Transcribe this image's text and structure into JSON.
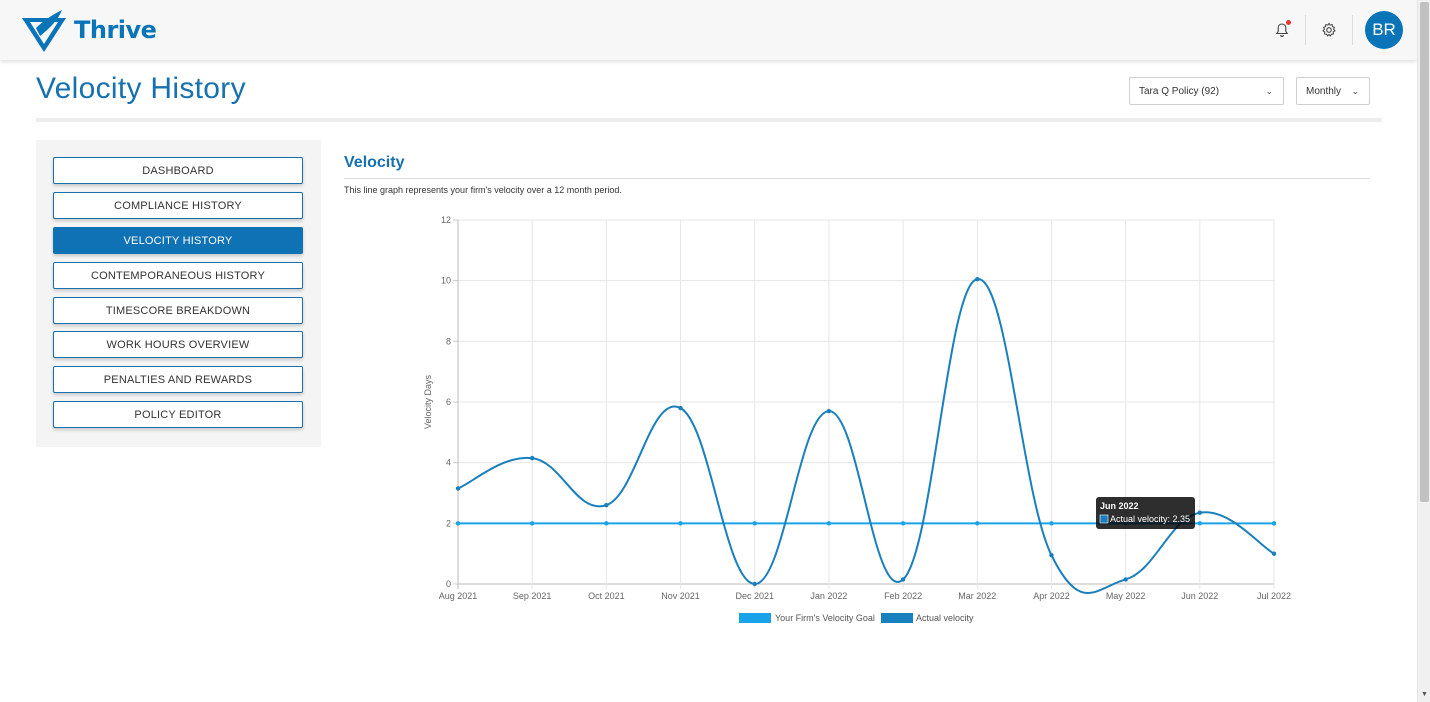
{
  "header": {
    "app_name": "Thrive",
    "avatar_initials": "BR",
    "icons": [
      "bell-icon",
      "gear-icon"
    ]
  },
  "page": {
    "title": "Velocity History",
    "policy_select": "Tara Q Policy (92)",
    "period_select": "Monthly"
  },
  "sidebar": {
    "items": [
      {
        "label": "DASHBOARD",
        "active": false
      },
      {
        "label": "COMPLIANCE HISTORY",
        "active": false
      },
      {
        "label": "VELOCITY HISTORY",
        "active": true
      },
      {
        "label": "CONTEMPORANEOUS HISTORY",
        "active": false
      },
      {
        "label": "TIMESCORE BREAKDOWN",
        "active": false
      },
      {
        "label": "WORK HOURS OVERVIEW",
        "active": false
      },
      {
        "label": "PENALTIES AND REWARDS",
        "active": false
      },
      {
        "label": "POLICY EDITOR",
        "active": false
      }
    ]
  },
  "chart_section": {
    "title": "Velocity",
    "description": "This line graph represents your firm's velocity over a 12 month period."
  },
  "colors": {
    "brand": "#0a74b8",
    "goal_line": "#1aa3e8",
    "actual_line": "#1a7fbd"
  },
  "chart_data": {
    "type": "line",
    "categories": [
      "Aug 2021",
      "Sep 2021",
      "Oct 2021",
      "Nov 2021",
      "Dec 2021",
      "Jan 2022",
      "Feb 2022",
      "Mar 2022",
      "Apr 2022",
      "May 2022",
      "Jun 2022",
      "Jul 2022"
    ],
    "series": [
      {
        "name": "Your Firm's Velocity Goal",
        "values": [
          2,
          2,
          2,
          2,
          2,
          2,
          2,
          2,
          2,
          2,
          2,
          2
        ]
      },
      {
        "name": "Actual velocity",
        "values": [
          3.15,
          4.15,
          2.6,
          5.8,
          0,
          5.7,
          0.15,
          10.05,
          0.95,
          0.15,
          2.35,
          1.0
        ]
      }
    ],
    "ylabel": "Velocity Days",
    "xlabel": "",
    "ylim": [
      0,
      12
    ],
    "yticks": [
      "0",
      "2",
      "4",
      "6",
      "8",
      "10",
      "12"
    ],
    "grid": true,
    "legend_position": "bottom",
    "tooltip": {
      "title": "Jun 2022",
      "body": "Actual velocity: 2.35"
    }
  }
}
